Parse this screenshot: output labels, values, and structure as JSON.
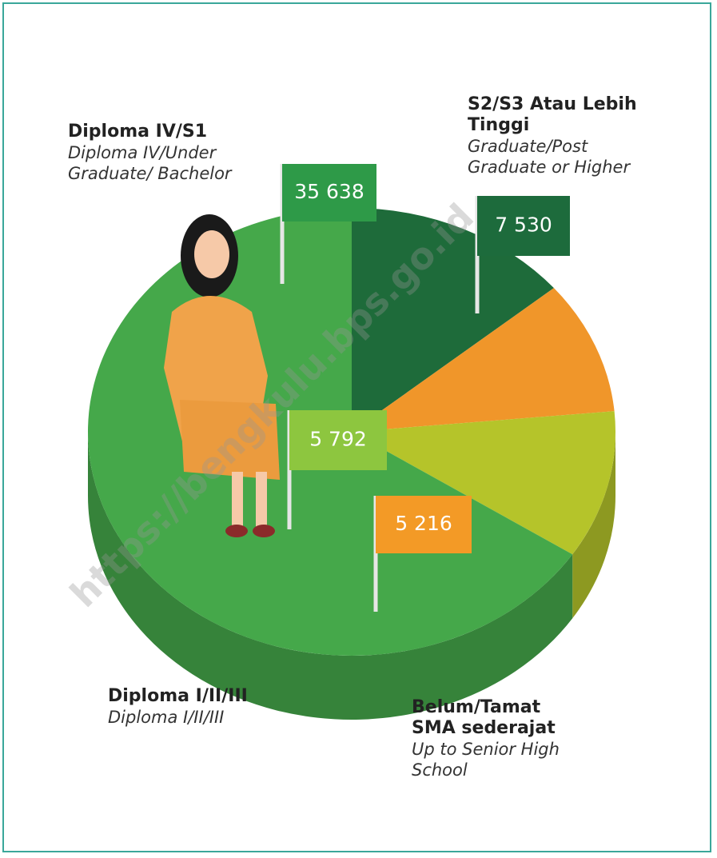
{
  "chart_data": {
    "type": "pie",
    "categories": [
      "S2/S3 Atau Lebih Tinggi",
      "Belum/Tamat SMA sederajat",
      "Diploma I/II/III",
      "Diploma IV/S1"
    ],
    "descriptions": [
      "Graduate/Post Graduate or Higher",
      "Up to Senior High School",
      "Diploma I/II/III",
      "Diploma IV/Under Graduate/ Bachelor"
    ],
    "values": [
      7530,
      5216,
      5792,
      35638
    ],
    "value_labels": [
      "7 530",
      "5 216",
      "5 792",
      "35 638"
    ],
    "colors": [
      "#1e6b3a",
      "#f0962a",
      "#b5c42a",
      "#45a84a"
    ],
    "flag_colors": [
      "#1d6b3c",
      "#f39a26",
      "#8dc63f",
      "#2e9a48"
    ],
    "watermark": "https://bengkulu.bps.go.id"
  }
}
